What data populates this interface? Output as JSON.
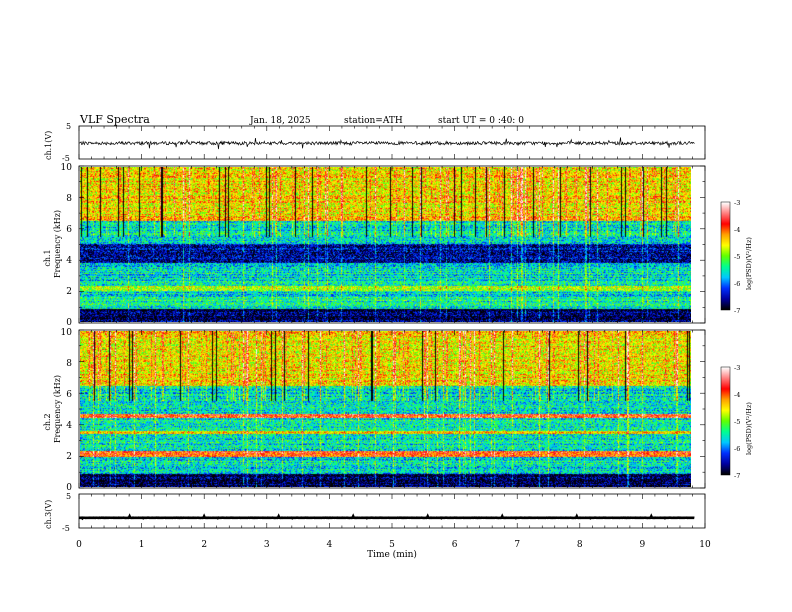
{
  "header": {
    "title": "VLF  Spectra",
    "date": "Jan. 18, 2025",
    "station": "station=ATH",
    "start_ut": "start  UT  =    0 :40: 0"
  },
  "colors": {
    "spectrogram_scale": [
      "#000000",
      "#0000a0",
      "#0030ff",
      "#00c8ff",
      "#00ff90",
      "#60ff00",
      "#ffff00",
      "#ffa000",
      "#ff0000",
      "#ff8080",
      "#ffffff"
    ]
  },
  "chart_data": [
    {
      "type": "line",
      "title": "",
      "ylabel": "ch.1(V)",
      "ylim": [
        -5,
        5
      ],
      "yticks": [
        "5",
        "-5"
      ],
      "xlim": [
        0,
        10
      ],
      "series": [
        {
          "x_range": [
            0,
            9.83
          ],
          "baseline_value": -0.2,
          "noise_amplitude": 1.0
        }
      ]
    },
    {
      "type": "heatmap",
      "ylabel": "ch.1\nFrequency (kHz)",
      "ylim": [
        0,
        10
      ],
      "yticks": [
        "0",
        "2",
        "4",
        "6",
        "8",
        "10"
      ],
      "xlim": [
        0,
        9.83
      ],
      "colorbar": {
        "label": "log(PSD)(V²/Hz)",
        "range": [
          -7,
          -3
        ],
        "ticks": [
          "-3",
          "-4",
          "-5",
          "-6",
          "-7"
        ]
      },
      "features": [
        {
          "freq_khz": [
            1.0,
            1.6
          ],
          "level": -5.5
        },
        {
          "freq_khz": [
            2.0,
            2.3
          ],
          "level": -4.8
        },
        {
          "freq_khz": [
            3.8,
            5.0
          ],
          "level": -6.5
        },
        {
          "freq_khz": [
            6.5,
            10.0
          ],
          "level": -4.5
        }
      ]
    },
    {
      "type": "heatmap",
      "ylabel": "ch.2\nFrequency (kHz)",
      "ylim": [
        0,
        10
      ],
      "yticks": [
        "0",
        "2",
        "4",
        "6",
        "8",
        "10"
      ],
      "xlim": [
        0,
        9.83
      ],
      "colorbar": {
        "label": "log(PSD)(V²/Hz)",
        "range": [
          -7,
          -3
        ],
        "ticks": [
          "-3",
          "-4",
          "-5",
          "-6",
          "-7"
        ]
      },
      "features": [
        {
          "freq_khz": [
            1.9,
            2.3
          ],
          "level": -3.8
        },
        {
          "freq_khz": [
            3.4,
            3.6
          ],
          "level": -4.5
        },
        {
          "freq_khz": [
            4.4,
            4.7
          ],
          "level": -3.8
        },
        {
          "freq_khz": [
            6.5,
            10.0
          ],
          "level": -4.5
        }
      ]
    },
    {
      "type": "line",
      "ylabel": "ch.3(V)",
      "ylim": [
        -5,
        5
      ],
      "yticks": [
        "5",
        "-5"
      ],
      "xlim": [
        0,
        10
      ],
      "series": [
        {
          "x_range": [
            0,
            9.83
          ],
          "baseline_value": -2.0,
          "noise_amplitude": 0.2
        }
      ]
    }
  ],
  "xaxis": {
    "label": "Time  (min)",
    "ticks": [
      "0",
      "1",
      "2",
      "3",
      "4",
      "5",
      "6",
      "7",
      "8",
      "9",
      "10"
    ]
  }
}
